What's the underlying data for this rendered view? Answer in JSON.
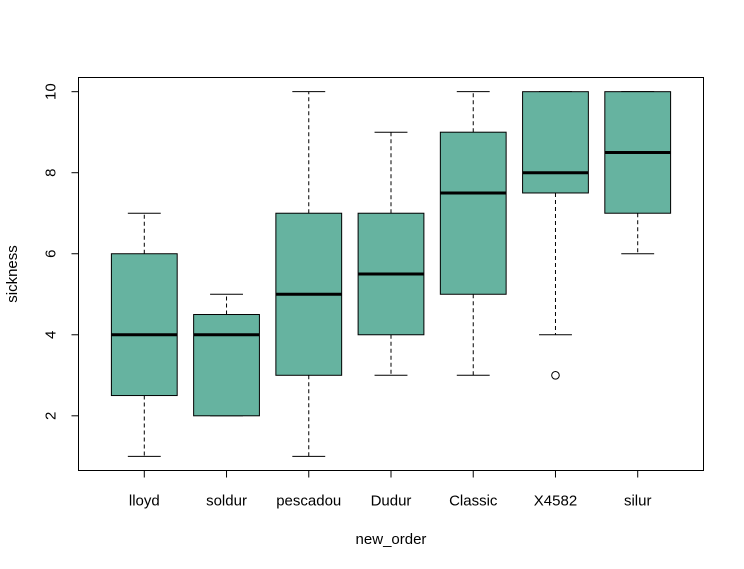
{
  "chart_data": {
    "type": "box",
    "title": "",
    "xlabel": "new_order",
    "ylabel": "sickness",
    "ylim": [
      0.65,
      10.35
    ],
    "yticks": [
      2,
      4,
      6,
      8,
      10
    ],
    "grid": false,
    "legend": "none",
    "box_color": "#66b3a0",
    "categories": [
      "lloyd",
      "soldur",
      "pescadou",
      "Dudur",
      "Classic",
      "X4582",
      "silur"
    ],
    "boxes": [
      {
        "min": 1,
        "q1": 2.5,
        "median": 4,
        "q3": 6,
        "max": 7,
        "outliers": []
      },
      {
        "min": 2,
        "q1": 2,
        "median": 4,
        "q3": 4.5,
        "max": 5,
        "outliers": []
      },
      {
        "min": 1,
        "q1": 3,
        "median": 5,
        "q3": 7,
        "max": 10,
        "outliers": []
      },
      {
        "min": 3,
        "q1": 4,
        "median": 5.5,
        "q3": 7,
        "max": 9,
        "outliers": []
      },
      {
        "min": 3,
        "q1": 5,
        "median": 7.5,
        "q3": 9,
        "max": 10,
        "outliers": []
      },
      {
        "min": 4,
        "q1": 7.5,
        "median": 8,
        "q3": 10,
        "max": 10,
        "outliers": [
          3
        ]
      },
      {
        "min": 6,
        "q1": 7,
        "median": 8.5,
        "q3": 10,
        "max": 10,
        "outliers": []
      }
    ]
  }
}
